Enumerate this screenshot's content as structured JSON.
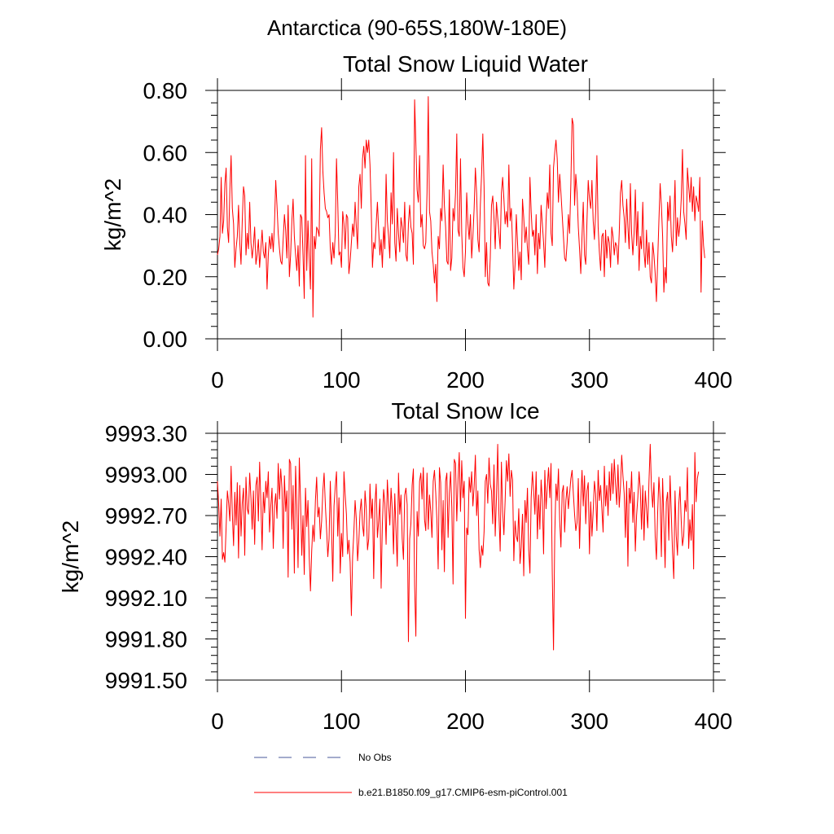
{
  "figure_title": "Antarctica (90-65S,180W-180E)",
  "legend": {
    "no_obs_label": "No Obs",
    "no_obs_color": "#4a5a9a",
    "model_label": "b.e21.B1850.f09_g17.CMIP6-esm-piControl.001",
    "model_color": "#ff0000"
  },
  "chart_data": [
    {
      "type": "line",
      "title": "Total Snow Liquid Water",
      "xlabel": "",
      "ylabel": "kg/m^2",
      "xlim": [
        0,
        400
      ],
      "ylim": [
        0,
        0.8
      ],
      "xticks": [
        0,
        100,
        200,
        300,
        400
      ],
      "xtick_labels": [
        "0",
        "100",
        "200",
        "300",
        "400"
      ],
      "yticks": [
        0,
        0.2,
        0.4,
        0.6,
        0.8
      ],
      "ytick_labels": [
        "0.00",
        "0.20",
        "0.40",
        "0.60",
        "0.80"
      ],
      "grid": false,
      "series": [
        {
          "name": "b.e21.B1850.f09_g17.CMIP6-esm-piControl.001",
          "color": "#ff0000",
          "x_start": 0,
          "x_step": 1,
          "values": [
            0.27,
            0.29,
            0.33,
            0.52,
            0.34,
            0.38,
            0.5,
            0.55,
            0.36,
            0.31,
            0.48,
            0.59,
            0.42,
            0.37,
            0.23,
            0.29,
            0.33,
            0.43,
            0.31,
            0.24,
            0.38,
            0.49,
            0.46,
            0.27,
            0.34,
            0.29,
            0.44,
            0.31,
            0.26,
            0.3,
            0.36,
            0.24,
            0.27,
            0.32,
            0.23,
            0.29,
            0.35,
            0.28,
            0.26,
            0.31,
            0.16,
            0.27,
            0.33,
            0.29,
            0.34,
            0.28,
            0.37,
            0.51,
            0.43,
            0.34,
            0.29,
            0.25,
            0.24,
            0.32,
            0.4,
            0.35,
            0.26,
            0.43,
            0.2,
            0.27,
            0.38,
            0.45,
            0.33,
            0.27,
            0.22,
            0.3,
            0.17,
            0.4,
            0.39,
            0.27,
            0.13,
            0.59,
            0.22,
            0.38,
            0.26,
            0.16,
            0.58,
            0.07,
            0.33,
            0.29,
            0.36,
            0.35,
            0.33,
            0.61,
            0.68,
            0.54,
            0.47,
            0.42,
            0.41,
            0.39,
            0.4,
            0.29,
            0.24,
            0.31,
            0.26,
            0.34,
            0.58,
            0.44,
            0.27,
            0.28,
            0.23,
            0.41,
            0.37,
            0.29,
            0.4,
            0.39,
            0.21,
            0.25,
            0.31,
            0.37,
            0.33,
            0.44,
            0.36,
            0.29,
            0.49,
            0.53,
            0.42,
            0.58,
            0.62,
            0.55,
            0.64,
            0.6,
            0.64,
            0.56,
            0.42,
            0.23,
            0.31,
            0.29,
            0.37,
            0.44,
            0.35,
            0.27,
            0.32,
            0.23,
            0.36,
            0.29,
            0.53,
            0.38,
            0.33,
            0.26,
            0.47,
            0.37,
            0.6,
            0.31,
            0.25,
            0.42,
            0.34,
            0.28,
            0.39,
            0.36,
            0.31,
            0.44,
            0.27,
            0.25,
            0.37,
            0.43,
            0.36,
            0.34,
            0.24,
            0.77,
            0.63,
            0.48,
            0.44,
            0.59,
            0.36,
            0.4,
            0.3,
            0.29,
            0.31,
            0.47,
            0.78,
            0.41,
            0.38,
            0.28,
            0.24,
            0.18,
            0.24,
            0.12,
            0.33,
            0.29,
            0.42,
            0.38,
            0.56,
            0.43,
            0.36,
            0.25,
            0.24,
            0.48,
            0.22,
            0.26,
            0.42,
            0.38,
            0.47,
            0.66,
            0.35,
            0.33,
            0.58,
            0.34,
            0.23,
            0.2,
            0.28,
            0.47,
            0.37,
            0.32,
            0.4,
            0.26,
            0.33,
            0.42,
            0.55,
            0.47,
            0.32,
            0.28,
            0.43,
            0.53,
            0.66,
            0.49,
            0.2,
            0.31,
            0.18,
            0.17,
            0.26,
            0.43,
            0.46,
            0.39,
            0.29,
            0.44,
            0.39,
            0.34,
            0.29,
            0.47,
            0.52,
            0.45,
            0.37,
            0.41,
            0.36,
            0.56,
            0.38,
            0.42,
            0.3,
            0.16,
            0.24,
            0.4,
            0.31,
            0.22,
            0.28,
            0.19,
            0.45,
            0.39,
            0.31,
            0.36,
            0.29,
            0.24,
            0.52,
            0.41,
            0.33,
            0.35,
            0.27,
            0.4,
            0.21,
            0.34,
            0.29,
            0.43,
            0.37,
            0.31,
            0.23,
            0.38,
            0.47,
            0.42,
            0.56,
            0.34,
            0.3,
            0.55,
            0.6,
            0.64,
            0.58,
            0.44,
            0.53,
            0.47,
            0.4,
            0.33,
            0.26,
            0.25,
            0.31,
            0.4,
            0.34,
            0.5,
            0.71,
            0.69,
            0.43,
            0.53,
            0.47,
            0.36,
            0.29,
            0.21,
            0.33,
            0.44,
            0.27,
            0.24,
            0.38,
            0.51,
            0.45,
            0.42,
            0.51,
            0.38,
            0.32,
            0.41,
            0.59,
            0.36,
            0.28,
            0.22,
            0.33,
            0.34,
            0.2,
            0.35,
            0.26,
            0.33,
            0.31,
            0.23,
            0.36,
            0.33,
            0.27,
            0.31,
            0.3,
            0.24,
            0.34,
            0.47,
            0.51,
            0.43,
            0.39,
            0.31,
            0.45,
            0.36,
            0.29,
            0.5,
            0.34,
            0.27,
            0.34,
            0.48,
            0.3,
            0.41,
            0.22,
            0.33,
            0.29,
            0.44,
            0.28,
            0.23,
            0.35,
            0.24,
            0.31,
            0.2,
            0.18,
            0.31,
            0.27,
            0.21,
            0.12,
            0.25,
            0.38,
            0.5,
            0.43,
            0.33,
            0.15,
            0.23,
            0.18,
            0.44,
            0.38,
            0.46,
            0.33,
            0.28,
            0.38,
            0.51,
            0.3,
            0.39,
            0.33,
            0.37,
            0.45,
            0.61,
            0.41,
            0.37,
            0.32,
            0.55,
            0.49,
            0.44,
            0.52,
            0.41,
            0.49,
            0.38,
            0.46,
            0.44,
            0.41,
            0.52,
            0.15,
            0.38,
            0.3,
            0.26
          ]
        }
      ]
    },
    {
      "type": "line",
      "title": "Total Snow Ice",
      "xlabel": "",
      "ylabel": "kg/m^2",
      "xlim": [
        0,
        400
      ],
      "ylim": [
        9991.5,
        9993.3
      ],
      "xticks": [
        0,
        100,
        200,
        300,
        400
      ],
      "xtick_labels": [
        "0",
        "100",
        "200",
        "300",
        "400"
      ],
      "yticks": [
        9991.5,
        9991.8,
        9992.1,
        9992.4,
        9992.7,
        9993.0,
        9993.3
      ],
      "ytick_labels": [
        "9991.50",
        "9991.80",
        "9992.10",
        "9992.40",
        "9992.70",
        "9993.00",
        "9993.30"
      ],
      "grid": false,
      "series": [
        {
          "name": "b.e21.B1850.f09_g17.CMIP6-esm-piControl.001",
          "color": "#ff0000",
          "x_start": 0,
          "x_step": 1,
          "values": [
            9992.95,
            9992.78,
            9992.55,
            9992.82,
            9992.38,
            9992.43,
            9992.36,
            9992.62,
            9992.88,
            9992.79,
            9992.66,
            9993.06,
            9992.71,
            9992.48,
            9992.87,
            9992.63,
            9992.94,
            9992.39,
            9992.92,
            9992.55,
            9992.79,
            9992.9,
            9992.41,
            9992.98,
            9992.75,
            9992.71,
            9993.01,
            9992.83,
            9992.6,
            9992.88,
            9992.49,
            9992.92,
            9992.98,
            9992.66,
            9993.09,
            9992.8,
            9992.45,
            9992.87,
            9992.72,
            9992.95,
            9992.83,
            9993.02,
            9992.58,
            9992.77,
            9992.9,
            9992.46,
            9992.77,
            9992.86,
            9992.68,
            9993.08,
            9992.82,
            9993.04,
            9992.9,
            9992.46,
            9992.99,
            9992.73,
            9992.88,
            9992.25,
            9993.11,
            9993.08,
            9992.6,
            9992.92,
            9992.28,
            9993.06,
            9992.78,
            9992.32,
            9993.12,
            9992.81,
            9992.41,
            9992.7,
            9992.27,
            9992.9,
            9992.62,
            9992.81,
            9992.4,
            9992.15,
            9992.44,
            9992.63,
            9992.51,
            9992.81,
            9992.98,
            9992.69,
            9992.76,
            9992.53,
            9992.66,
            9992.88,
            9993.01,
            9992.78,
            9992.6,
            9992.4,
            9992.53,
            9992.95,
            9992.61,
            9992.22,
            9992.77,
            9992.91,
            9993.02,
            9992.55,
            9992.83,
            9992.28,
            9992.57,
            9992.4,
            9993.02,
            9992.85,
            9992.71,
            9992.42,
            9992.52,
            9992.36,
            9991.97,
            9992.4,
            9992.58,
            9992.81,
            9992.67,
            9992.37,
            9992.51,
            9992.73,
            9992.82,
            9992.63,
            9992.55,
            9992.88,
            9992.75,
            9992.45,
            9992.53,
            9992.93,
            9992.68,
            9992.82,
            9992.24,
            9992.79,
            9992.93,
            9992.54,
            9992.66,
            9992.82,
            9992.17,
            9992.64,
            9992.89,
            9992.79,
            9992.49,
            9992.96,
            9992.78,
            9992.63,
            9992.9,
            9992.74,
            9992.42,
            9992.86,
            9992.59,
            9992.33,
            9993.01,
            9992.71,
            9992.85,
            9992.53,
            9992.38,
            9992.85,
            9992.9,
            9992.78,
            9991.78,
            9992.53,
            9992.64,
            9992.92,
            9993.04,
            9992.19,
            9991.82,
            9992.73,
            9992.55,
            9992.95,
            9993.01,
            9992.82,
            9993.05,
            9992.67,
            9992.59,
            9993.01,
            9992.6,
            9992.85,
            9992.73,
            9992.54,
            9992.95,
            9993.03,
            9992.87,
            9992.66,
            9992.31,
            9993.05,
            9992.94,
            9992.45,
            9992.81,
            9992.29,
            9992.95,
            9993.01,
            9992.54,
            9992.86,
            9993.02,
            9992.76,
            9992.2,
            9993.11,
            9993.08,
            9992.66,
            9992.96,
            9993.16,
            9992.73,
            9993.1,
            9992.83,
            9992.95,
            9991.95,
            9992.61,
            9992.56,
            9992.98,
            9992.87,
            9993.02,
            9992.77,
            9992.91,
            9993.14,
            9992.7,
            9992.88,
            9992.45,
            9992.32,
            9992.48,
            9992.41,
            9992.58,
            9992.95,
            9993.0,
            9992.79,
            9993.12,
            9992.93,
            9992.88,
            9992.64,
            9993.07,
            9992.55,
            9992.83,
            9993.22,
            9992.71,
            9992.44,
            9993.09,
            9992.73,
            9992.56,
            9992.81,
            9993.1,
            9992.95,
            9993.15,
            9992.84,
            9993.03,
            9992.96,
            9992.37,
            9992.66,
            9992.55,
            9992.51,
            9992.75,
            9992.35,
            9992.47,
            9992.71,
            9992.26,
            9992.81,
            9992.65,
            9992.9,
            9992.45,
            9992.28,
            9992.83,
            9993.02,
            9992.88,
            9992.71,
            9993.02,
            9992.53,
            9992.85,
            9992.6,
            9992.96,
            9992.81,
            9992.42,
            9993.03,
            9992.75,
            9992.91,
            9993.05,
            9992.83,
            9993.08,
            9992.28,
            9991.72,
            9992.55,
            9992.93,
            9992.81,
            9993.04,
            9992.66,
            9992.47,
            9992.87,
            9992.92,
            9992.58,
            9992.81,
            9992.91,
            9992.75,
            9992.86,
            9992.97,
            9993.03,
            9992.86,
            9992.71,
            9992.59,
            9992.65,
            9992.97,
            9992.46,
            9992.81,
            9993.03,
            9992.77,
            9992.99,
            9992.64,
            9992.88,
            9992.94,
            9992.42,
            9992.8,
            9992.55,
            9992.73,
            9992.95,
            9992.86,
            9992.59,
            9993.03,
            9992.81,
            9992.92,
            9992.75,
            9992.58,
            9993.06,
            9992.77,
            9992.92,
            9992.7,
            9993.02,
            9992.81,
            9993.08,
            9992.86,
            9993.11,
            9992.93,
            9992.78,
            9993.07,
            9992.76,
            9992.91,
            9993.14,
            9992.99,
            9992.86,
            9992.54,
            9992.95,
            9992.33,
            9992.9,
            9992.79,
            9993.02,
            9992.65,
            9992.87,
            9992.44,
            9992.7,
            9992.83,
            9993.02,
            9992.89,
            9992.6,
            9992.92,
            9992.52,
            9992.88,
            9992.75,
            9992.61,
            9992.95,
            9993.22,
            9992.9,
            9992.76,
            9992.94,
            9992.55,
            9992.38,
            9992.72,
            9992.98,
            9992.82,
            9992.4,
            9992.97,
            9992.66,
            9992.32,
            9992.8,
            9992.87,
            9992.52,
            9992.99,
            9992.71,
            9992.43,
            9992.24,
            9992.88,
            9992.55,
            9992.41,
            9992.78,
            9992.91,
            9992.66,
            9992.48,
            9992.55,
            9992.81,
            9992.73,
            9993.05,
            9992.46,
            9992.67,
            9992.52,
            9992.78,
            9992.31,
            9993.16,
            9992.8,
            9992.97,
            9993.02
          ]
        }
      ]
    }
  ]
}
